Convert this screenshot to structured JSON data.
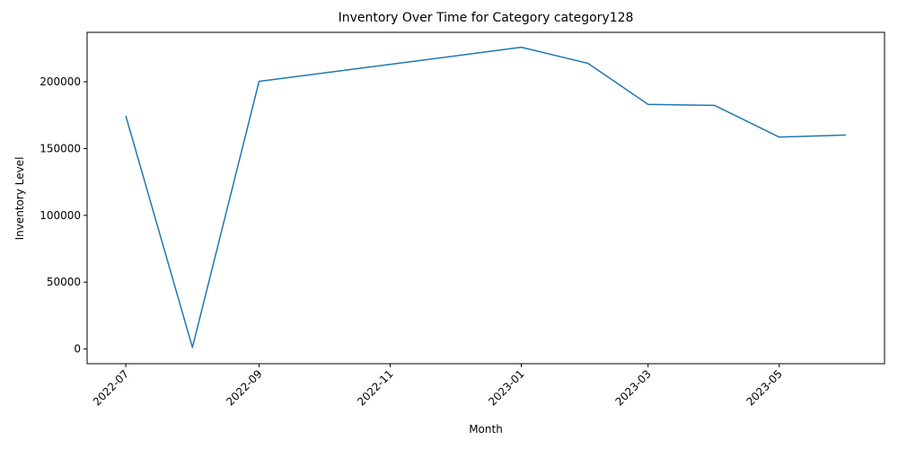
{
  "chart_data": {
    "type": "line",
    "title": "Inventory Over Time for Category category128",
    "xlabel": "Month",
    "ylabel": "Inventory Level",
    "x": [
      "2022-07-01",
      "2022-08-01",
      "2022-09-01",
      "2023-01-01",
      "2023-02-01",
      "2023-03-01",
      "2023-04-01",
      "2023-05-01",
      "2023-06-01"
    ],
    "series": [
      {
        "values": [
          174500,
          1200,
          200300,
          225800,
          213800,
          183100,
          182300,
          158600,
          160100
        ],
        "color": "#1f77b4"
      }
    ],
    "x_ticks": [
      "2022-07",
      "2022-09",
      "2022-11",
      "2023-01",
      "2023-03",
      "2023-05"
    ],
    "x_tick_dates": [
      "2022-07-01",
      "2022-09-01",
      "2022-11-01",
      "2023-01-01",
      "2023-03-01",
      "2023-05-01"
    ],
    "y_ticks": [
      0,
      50000,
      100000,
      150000,
      200000
    ],
    "y_tick_labels": [
      "0",
      "50000",
      "100000",
      "150000",
      "200000"
    ],
    "xlim": [
      "2022-06-13",
      "2023-06-19"
    ],
    "ylim": [
      -11000,
      237000
    ],
    "grid": false,
    "legend": false
  }
}
